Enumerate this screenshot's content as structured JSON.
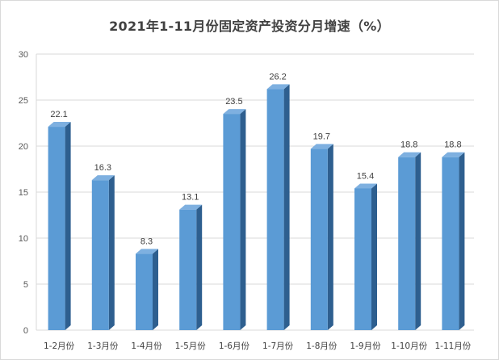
{
  "chart_data": {
    "type": "bar",
    "title": "2021年1-11月份固定资产投资分月增速（%）",
    "categories": [
      "1-2月份",
      "1-3月份",
      "1-4月份",
      "1-5月份",
      "1-6月份",
      "1-7月份",
      "1-8月份",
      "1-9月份",
      "1-10月份",
      "1-11月份"
    ],
    "values": [
      22.1,
      16.3,
      8.3,
      13.1,
      23.5,
      26.2,
      19.7,
      15.4,
      18.8,
      18.8
    ],
    "data_labels": [
      "22.1",
      "16.3",
      "8.3",
      "13.1",
      "23.5",
      "26.2",
      "19.7",
      "15.4",
      "18.8",
      "18.8"
    ],
    "yticks": [
      "0",
      "5",
      "10",
      "15",
      "20",
      "25",
      "30"
    ],
    "ylim": [
      0,
      30
    ],
    "grid": true,
    "legend": "none",
    "xlabel": "",
    "ylabel": "",
    "colors": {
      "bar_front": "#5b9bd5",
      "bar_side": "#2e5f8f",
      "bar_top": "#7eb0e0",
      "grid": "#d9d9d9"
    }
  }
}
